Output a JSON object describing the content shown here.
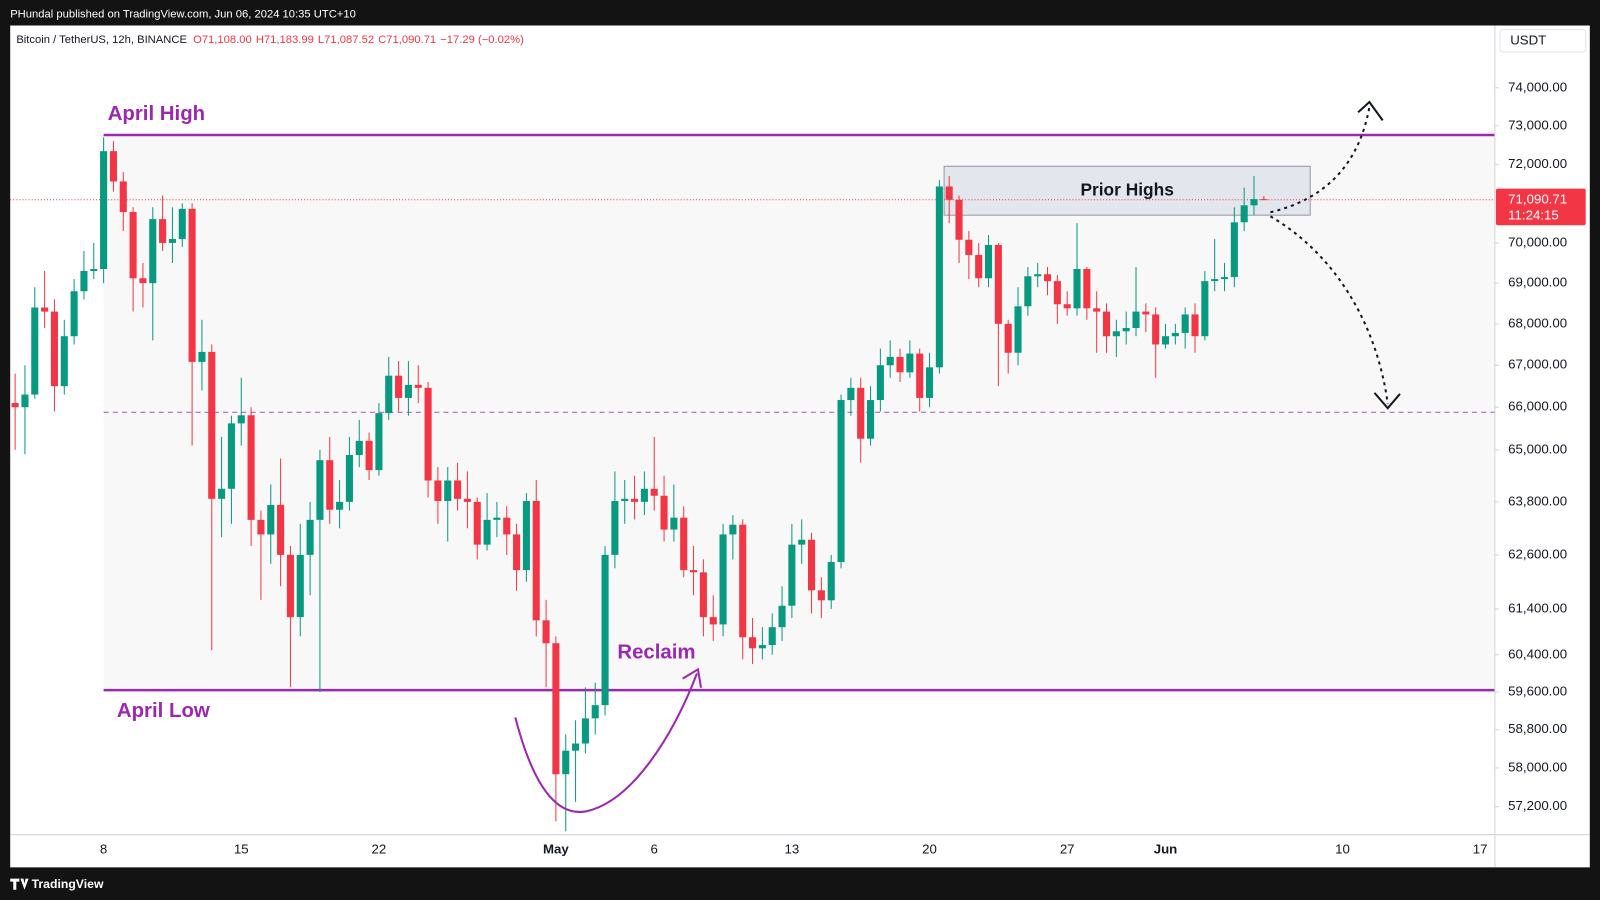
{
  "chart_data": {
    "type": "candlestick",
    "published": "PHundal published on TradingView.com, Jun 06, 2024 10:35 UTC+10",
    "symbol": "Bitcoin / TetherUS, 12h, BINANCE",
    "ohlc_legend": [
      "O71,108.00",
      "H71,183.99",
      "L71,087.52",
      "C71,090.71",
      "−17.29 (−0.02%)"
    ],
    "currency": "USDT",
    "brand": "TradingView",
    "log": true,
    "grid": false,
    "up_color": "#089981",
    "down_color": "#f23645",
    "annotation_color": "#9c27b0",
    "ylim": [
      56630,
      75670
    ],
    "yticks": [
      {
        "value": 57200,
        "label": "57,200.00"
      },
      {
        "value": 58000,
        "label": "58,000.00"
      },
      {
        "value": 58800,
        "label": "58,800.00"
      },
      {
        "value": 59600,
        "label": "59,600.00"
      },
      {
        "value": 60400,
        "label": "60,400.00"
      },
      {
        "value": 61400,
        "label": "61,400.00"
      },
      {
        "value": 62600,
        "label": "62,600.00"
      },
      {
        "value": 63800,
        "label": "63,800.00"
      },
      {
        "value": 65000,
        "label": "65,000.00"
      },
      {
        "value": 66000,
        "label": "66,000.00"
      },
      {
        "value": 67000,
        "label": "67,000.00"
      },
      {
        "value": 68000,
        "label": "68,000.00"
      },
      {
        "value": 69000,
        "label": "69,000.00"
      },
      {
        "value": 70000,
        "label": "70,000.00"
      },
      {
        "value": 72000,
        "label": "72,000.00"
      },
      {
        "value": 73000,
        "label": "73,000.00"
      },
      {
        "value": 74000,
        "label": "74,000.00"
      }
    ],
    "last_price": {
      "value": 71090.71,
      "label": "71,090.71"
    },
    "countdown": "11:24:15",
    "annotations": {
      "april_high": {
        "label": "April High",
        "value": 72760
      },
      "april_low": {
        "label": "April Low",
        "value": 59640
      },
      "mid_level": 65880,
      "prior_highs": {
        "label": "Prior Highs",
        "range": [
          70700,
          71950
        ]
      },
      "reclaim": "Reclaim"
    },
    "categories": [
      null,
      null,
      null,
      null,
      null,
      null,
      null,
      null,
      null,
      "8",
      null,
      null,
      null,
      null,
      null,
      null,
      null,
      null,
      null,
      null,
      null,
      null,
      null,
      "15",
      null,
      null,
      null,
      null,
      null,
      null,
      null,
      null,
      null,
      null,
      null,
      null,
      null,
      "22",
      null,
      null,
      null,
      null,
      null,
      null,
      null,
      null,
      null,
      null,
      null,
      null,
      null,
      null,
      null,
      null,
      null,
      "May",
      null,
      null,
      null,
      null,
      null,
      null,
      null,
      null,
      null,
      "6",
      null,
      null,
      null,
      null,
      null,
      null,
      null,
      null,
      null,
      null,
      null,
      null,
      null,
      "13",
      null,
      null,
      null,
      null,
      null,
      null,
      null,
      null,
      null,
      null,
      null,
      null,
      null,
      "20",
      null,
      null,
      null,
      null,
      null,
      null,
      null,
      null,
      null,
      null,
      null,
      null,
      null,
      "27",
      null,
      null,
      null,
      null,
      null,
      null,
      null,
      null,
      null,
      "Jun",
      null,
      null,
      null,
      null,
      null,
      null,
      null,
      null,
      null,
      null,
      null,
      null,
      null,
      null,
      null,
      null,
      null,
      "10",
      null,
      null,
      null,
      null,
      null,
      null,
      null,
      null,
      null,
      null,
      null,
      null,
      null,
      "17",
      null
    ],
    "ohlc": [
      [
        66100,
        66800,
        65000,
        66000
      ],
      [
        66000,
        67000,
        64900,
        66300
      ],
      [
        66300,
        68900,
        66200,
        68400
      ],
      [
        68400,
        69300,
        67900,
        68300
      ],
      [
        68300,
        68600,
        65900,
        66500
      ],
      [
        66500,
        68100,
        66300,
        67700
      ],
      [
        67700,
        69100,
        67500,
        68800
      ],
      [
        68800,
        69800,
        68600,
        69300
      ],
      [
        69300,
        70000,
        69100,
        69350
      ],
      [
        69350,
        72700,
        69000,
        72340
      ],
      [
        72340,
        72600,
        71300,
        71560
      ],
      [
        71560,
        71800,
        70300,
        70780
      ],
      [
        70780,
        70900,
        68300,
        69120
      ],
      [
        69120,
        69500,
        68400,
        69000
      ],
      [
        69000,
        70900,
        67600,
        70600
      ],
      [
        70600,
        71200,
        69800,
        70000
      ],
      [
        70000,
        70900,
        69500,
        70100
      ],
      [
        70100,
        71000,
        69900,
        70860
      ],
      [
        70860,
        71000,
        65100,
        67080
      ],
      [
        67080,
        68100,
        66400,
        67320
      ],
      [
        67320,
        67500,
        60500,
        63870
      ],
      [
        63870,
        65300,
        63000,
        64100
      ],
      [
        64100,
        65800,
        63300,
        65620
      ],
      [
        65620,
        66700,
        65100,
        65810
      ],
      [
        65810,
        66000,
        62800,
        63390
      ],
      [
        63390,
        63600,
        61600,
        63060
      ],
      [
        63060,
        64200,
        62400,
        63730
      ],
      [
        63730,
        64800,
        61900,
        62600
      ],
      [
        62600,
        62800,
        59700,
        61220
      ],
      [
        61220,
        63300,
        60800,
        62600
      ],
      [
        62600,
        63800,
        61700,
        63390
      ],
      [
        63390,
        65000,
        59600,
        64760
      ],
      [
        64760,
        65300,
        63300,
        63620
      ],
      [
        63620,
        64300,
        63200,
        63800
      ],
      [
        63800,
        65300,
        63600,
        64880
      ],
      [
        64880,
        65700,
        64600,
        65210
      ],
      [
        65210,
        65400,
        64300,
        64530
      ],
      [
        64530,
        66100,
        64400,
        65860
      ],
      [
        65860,
        67200,
        65700,
        66750
      ],
      [
        66750,
        67100,
        65900,
        66220
      ],
      [
        66220,
        67100,
        65800,
        66530
      ],
      [
        66530,
        67000,
        66100,
        66460
      ],
      [
        66460,
        66600,
        63900,
        64290
      ],
      [
        64290,
        64600,
        63300,
        63820
      ],
      [
        63820,
        64600,
        62900,
        64290
      ],
      [
        64290,
        64700,
        63600,
        63870
      ],
      [
        63870,
        64500,
        63200,
        63800
      ],
      [
        63800,
        63900,
        62500,
        62830
      ],
      [
        62830,
        64000,
        62700,
        63390
      ],
      [
        63390,
        63800,
        63000,
        63440
      ],
      [
        63440,
        63700,
        62600,
        63060
      ],
      [
        63060,
        63300,
        61800,
        62260
      ],
      [
        62260,
        64000,
        62000,
        63820
      ],
      [
        63820,
        64300,
        60800,
        61150
      ],
      [
        61150,
        61600,
        59700,
        60650
      ],
      [
        60650,
        60800,
        56900,
        57870
      ],
      [
        57870,
        58700,
        56700,
        58360
      ],
      [
        58360,
        59000,
        57300,
        58510
      ],
      [
        58510,
        59700,
        58300,
        59040
      ],
      [
        59040,
        59800,
        58700,
        59320
      ],
      [
        59320,
        62800,
        59100,
        62600
      ],
      [
        62600,
        64500,
        62300,
        63820
      ],
      [
        63820,
        64300,
        63300,
        63870
      ],
      [
        63870,
        64400,
        63400,
        63800
      ],
      [
        63800,
        64500,
        63500,
        64100
      ],
      [
        64100,
        65300,
        63600,
        63940
      ],
      [
        63940,
        64400,
        62900,
        63170
      ],
      [
        63170,
        64200,
        62900,
        63440
      ],
      [
        63440,
        63700,
        62100,
        62260
      ],
      [
        62260,
        62800,
        61700,
        62210
      ],
      [
        62210,
        62500,
        60800,
        61220
      ],
      [
        61220,
        61700,
        60700,
        61060
      ],
      [
        61060,
        63300,
        60800,
        63060
      ],
      [
        63060,
        63500,
        62500,
        63280
      ],
      [
        63280,
        63400,
        60300,
        60780
      ],
      [
        60780,
        61200,
        60200,
        60540
      ],
      [
        60540,
        61000,
        60300,
        60610
      ],
      [
        60610,
        61300,
        60400,
        61000
      ],
      [
        61000,
        61900,
        60700,
        61470
      ],
      [
        61470,
        63300,
        61200,
        62830
      ],
      [
        62830,
        63400,
        62400,
        62940
      ],
      [
        62940,
        63100,
        61300,
        61810
      ],
      [
        61810,
        62100,
        61200,
        61590
      ],
      [
        61590,
        62600,
        61400,
        62440
      ],
      [
        62440,
        66300,
        62300,
        66170
      ],
      [
        66170,
        66700,
        65800,
        66460
      ],
      [
        66460,
        66700,
        64700,
        65260
      ],
      [
        65260,
        66500,
        65100,
        66170
      ],
      [
        66170,
        67400,
        65900,
        67000
      ],
      [
        67000,
        67600,
        66700,
        67200
      ],
      [
        67200,
        67400,
        66600,
        66830
      ],
      [
        66830,
        67600,
        66700,
        67280
      ],
      [
        67280,
        67400,
        65900,
        66220
      ],
      [
        66220,
        67300,
        66000,
        66950
      ],
      [
        66950,
        71600,
        66800,
        71430
      ],
      [
        71430,
        71700,
        70500,
        71090
      ],
      [
        71090,
        71200,
        69500,
        70080
      ],
      [
        70080,
        70300,
        69100,
        69700
      ],
      [
        69700,
        70000,
        68900,
        69120
      ],
      [
        69120,
        70200,
        68900,
        69950
      ],
      [
        69950,
        70000,
        66500,
        68000
      ],
      [
        68000,
        68100,
        66800,
        67300
      ],
      [
        67300,
        68900,
        67000,
        68430
      ],
      [
        68430,
        69400,
        68200,
        69170
      ],
      [
        69170,
        69500,
        68900,
        69220
      ],
      [
        69220,
        69400,
        68700,
        69050
      ],
      [
        69050,
        69200,
        68000,
        68480
      ],
      [
        68480,
        68800,
        68200,
        68380
      ],
      [
        68380,
        70500,
        68200,
        69350
      ],
      [
        69350,
        69400,
        68100,
        68380
      ],
      [
        68380,
        68800,
        67300,
        68300
      ],
      [
        68300,
        68500,
        67300,
        67700
      ],
      [
        67700,
        68100,
        67200,
        67820
      ],
      [
        67820,
        68300,
        67500,
        67900
      ],
      [
        67900,
        69400,
        67700,
        68300
      ],
      [
        68300,
        68500,
        67800,
        68230
      ],
      [
        68230,
        68400,
        66700,
        67500
      ],
      [
        67500,
        68000,
        67400,
        67700
      ],
      [
        67700,
        68000,
        67500,
        67780
      ],
      [
        67780,
        68400,
        67400,
        68230
      ],
      [
        68230,
        68500,
        67300,
        67700
      ],
      [
        67700,
        69300,
        67600,
        69050
      ],
      [
        69050,
        70100,
        68800,
        69100
      ],
      [
        69100,
        69500,
        68800,
        69150
      ],
      [
        69150,
        70900,
        68900,
        70520
      ],
      [
        70520,
        71400,
        70300,
        70950
      ],
      [
        70950,
        71700,
        70700,
        71108
      ],
      [
        71108,
        71183.99,
        71087.52,
        71090.71
      ],
      null,
      null,
      null,
      null,
      null,
      null,
      null,
      null,
      null,
      null,
      null,
      null,
      null,
      null,
      null,
      null,
      null,
      null,
      null,
      null,
      null,
      null,
      null
    ]
  }
}
